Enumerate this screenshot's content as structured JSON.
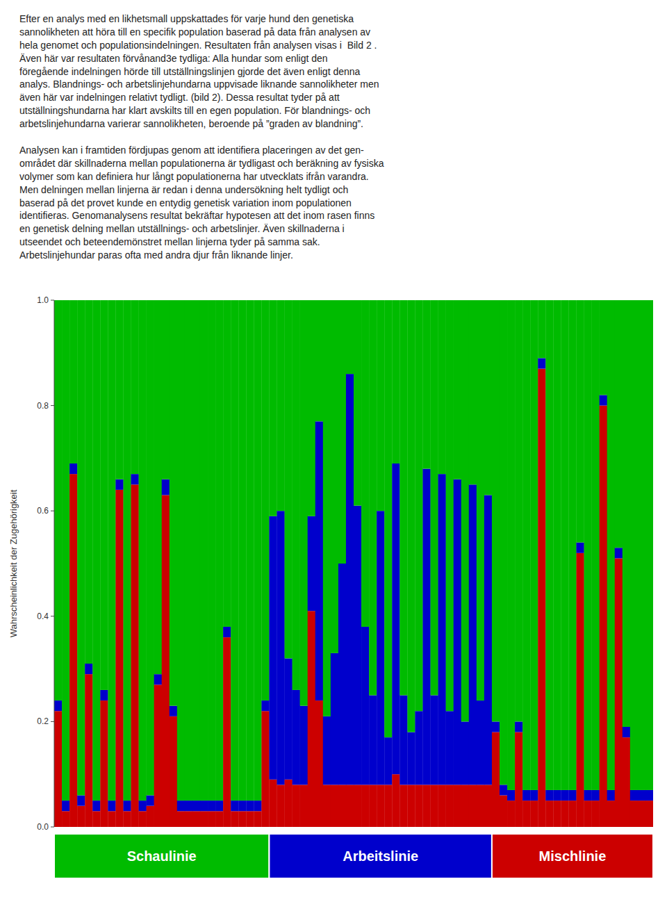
{
  "chart_data": {
    "type": "bar",
    "stacked": true,
    "grid": false,
    "tick_labels": "y",
    "annotations": [
      "Efter en analys med en likhetsmall uppskattades för varje hund den genetiska\nsannolikheten att höra till en specifik population baserad på data från analysen av\nhela genomet och populationsindelningen. Resultaten från analysen visas i  Bild 2 .\nÄven här var resultaten förvånand3e tydliga: Alla hundar som enligt den\nföregående indelningen hörde till utställningslinjen gjorde det även enligt denna\nanalys. Blandnings- och arbetslinjehundarna uppvisade liknande sannolikheter men\näven här var indelningen relativt tydligt. (bild 2). Dessa resultat tyder på att\nutställningshundarna har klart avskilts till en egen population. För blandnings- och\narbetslinjehundarna varierar sannolikheten, beroende på ”graden av blandning”.",
      "Analysen kan i framtiden fördjupas genom att identifiera placeringen av det gen-\nområdet där skillnaderna mellan populationerna är tydligast och beräkning av fysiska\nvolymer som kan definiera hur långt populationerna har utvecklats ifrån varandra.\nMen delningen mellan linjerna är redan i denna undersökning helt tydligt och\nbaserad på det provet kunde en entydig genetisk variation inom populationen\nidentifieras. Genomanalysens resultat bekräftar hypotesen att det inom rasen finns\nen genetisk delning mellan utställnings- och arbetslinjer. Även skillnaderna i\nutseendet och beteendemönstret mellan linjerna tyder på samma sak.\nArbetslinjehundar paras ofta med andra djur från liknande linjer."
    ],
    "ylabel": "Wahrscheinlichkeit der Zugehörigkeit",
    "ylim": [
      0.0,
      1.0
    ],
    "yticks": [
      {
        "value": 0.0,
        "label": "0.0"
      },
      0.2,
      0.4,
      0.6,
      0.8,
      {
        "value": 1.0,
        "label": "1.0"
      }
    ],
    "categories": [
      null,
      null,
      null,
      null,
      null,
      null,
      null,
      null,
      null,
      null,
      null,
      null,
      null,
      null,
      null,
      null,
      null,
      null,
      null,
      null,
      null,
      null,
      null,
      null,
      null,
      null,
      null,
      null,
      null,
      null,
      null,
      null,
      null,
      null,
      null,
      null,
      null,
      null,
      null,
      null,
      null,
      null,
      null,
      null,
      null,
      null,
      null,
      null,
      null,
      null,
      null,
      null,
      null,
      null,
      null,
      null,
      null,
      null,
      null,
      null,
      null,
      null,
      null,
      null,
      null,
      null,
      null,
      null,
      null,
      null,
      null,
      null,
      null,
      null,
      null,
      null,
      null,
      null
    ],
    "series": [
      {
        "color": "#CC0000",
        "values": [
          0.22,
          0.03,
          0.67,
          0.04,
          0.29,
          0.03,
          0.24,
          0.03,
          0.64,
          0.03,
          0.65,
          0.03,
          0.04,
          0.27,
          0.63,
          0.21,
          0.03,
          0.03,
          0.03,
          0.03,
          0.03,
          0.03,
          0.36,
          0.03,
          0.03,
          0.03,
          0.03,
          0.22,
          0.09,
          0.08,
          0.09,
          0.08,
          0.08,
          0.41,
          0.24,
          0.08,
          0.08,
          0.08,
          0.08,
          0.08,
          0.08,
          0.08,
          0.08,
          0.08,
          0.1,
          0.08,
          0.08,
          0.08,
          0.08,
          0.08,
          0.08,
          0.08,
          0.08,
          0.08,
          0.08,
          0.08,
          0.08,
          0.18,
          0.06,
          0.05,
          0.18,
          0.05,
          0.05,
          0.87,
          0.05,
          0.05,
          0.05,
          0.05,
          0.52,
          0.05,
          0.05,
          0.8,
          0.05,
          0.51,
          0.17,
          0.05,
          0.05,
          0.05
        ]
      },
      {
        "color": "#0000CC",
        "values": [
          0.02,
          0.02,
          0.02,
          0.02,
          0.02,
          0.02,
          0.02,
          0.02,
          0.02,
          0.02,
          0.02,
          0.02,
          0.02,
          0.02,
          0.03,
          0.02,
          0.02,
          0.02,
          0.02,
          0.02,
          0.02,
          0.02,
          0.02,
          0.02,
          0.02,
          0.02,
          0.02,
          0.02,
          0.5,
          0.52,
          0.23,
          0.18,
          0.15,
          0.18,
          0.53,
          0.13,
          0.25,
          0.42,
          0.78,
          0.53,
          0.3,
          0.17,
          0.52,
          0.09,
          0.59,
          0.17,
          0.1,
          0.14,
          0.6,
          0.17,
          0.59,
          0.14,
          0.58,
          0.12,
          0.57,
          0.16,
          0.55,
          0.02,
          0.02,
          0.02,
          0.02,
          0.02,
          0.02,
          0.02,
          0.02,
          0.02,
          0.02,
          0.02,
          0.02,
          0.02,
          0.02,
          0.02,
          0.02,
          0.02,
          0.02,
          0.02,
          0.02,
          0.02
        ]
      },
      {
        "color": "#00BB00",
        "values": [
          0.76,
          0.95,
          0.31,
          0.94,
          0.69,
          0.95,
          0.74,
          0.95,
          0.34,
          0.95,
          0.33,
          0.95,
          0.94,
          0.71,
          0.34,
          0.77,
          0.95,
          0.95,
          0.95,
          0.95,
          0.95,
          0.95,
          0.62,
          0.95,
          0.95,
          0.95,
          0.95,
          0.76,
          0.41,
          0.4,
          0.68,
          0.74,
          0.77,
          0.41,
          0.23,
          0.79,
          0.67,
          0.5,
          0.14,
          0.39,
          0.62,
          0.75,
          0.4,
          0.83,
          0.31,
          0.75,
          0.82,
          0.78,
          0.32,
          0.75,
          0.33,
          0.78,
          0.34,
          0.8,
          0.35,
          0.76,
          0.37,
          0.8,
          0.92,
          0.93,
          0.8,
          0.93,
          0.93,
          0.11,
          0.93,
          0.93,
          0.93,
          0.93,
          0.46,
          0.93,
          0.93,
          0.18,
          0.93,
          0.47,
          0.81,
          0.93,
          0.93,
          0.93
        ]
      }
    ],
    "groups": [
      {
        "label": "Schaulinie",
        "color": "#00BB00",
        "count": 28
      },
      {
        "label": "Arbeitslinie",
        "color": "#0000CC",
        "count": 29
      },
      {
        "label": "Mischlinie",
        "color": "#CC0000",
        "count": 21
      }
    ]
  }
}
